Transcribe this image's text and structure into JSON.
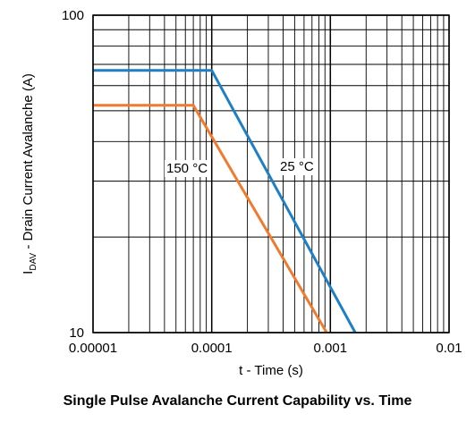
{
  "chart_data": {
    "type": "line",
    "title": "Single Pulse Avalanche Current Capability vs. Time",
    "xlabel": "t - Time (s)",
    "ylabel_main": "I",
    "ylabel_sub": "DAV",
    "ylabel_rest": " - Drain Current Avalanche (A)",
    "x_scale": "log",
    "y_scale": "log",
    "xlim": [
      1e-05,
      0.01
    ],
    "ylim": [
      10,
      100
    ],
    "x_tick_labels": [
      "0.00001",
      "0.0001",
      "0.001",
      "0.01"
    ],
    "y_tick_labels": [
      "10",
      "100"
    ],
    "grid": true,
    "series": [
      {
        "name": "25 °C",
        "color": "#1f7fc4",
        "x": [
          1e-05,
          0.0001,
          0.00162
        ],
        "y": [
          67,
          67,
          10
        ]
      },
      {
        "name": "150 °C",
        "color": "#f07a2d",
        "x": [
          1e-05,
          7e-05,
          0.00093
        ],
        "y": [
          52,
          52,
          10
        ]
      }
    ]
  }
}
